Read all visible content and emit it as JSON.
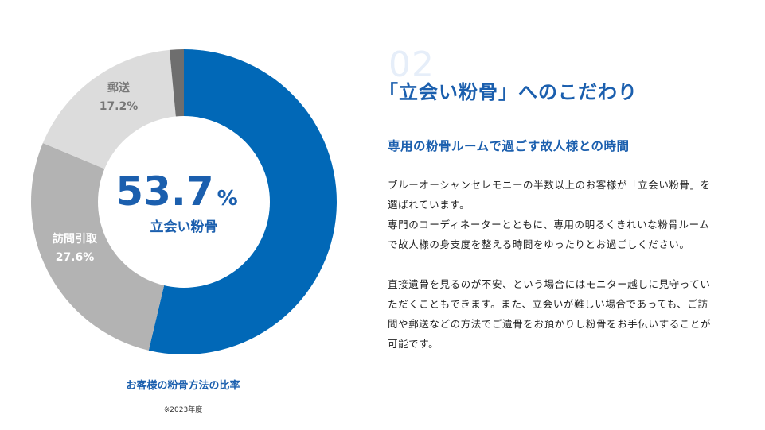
{
  "chart_data": {
    "type": "pie",
    "segments": [
      {
        "label": "立会い粉骨",
        "value": 53.7,
        "color": "#0168b7"
      },
      {
        "label": "訪問引取",
        "value": 27.6,
        "color": "#b3b3b3",
        "value_text": "27.6%"
      },
      {
        "label": "郵送",
        "value": 17.2,
        "color": "#dcdcdc",
        "value_text": "17.2%"
      },
      {
        "label": "",
        "value": 1.5,
        "color": "#6e6e6e"
      }
    ],
    "center": {
      "value": "53.7",
      "unit": "%",
      "label": "立会い粉骨"
    }
  },
  "caption": "お客様の粉骨方法の比率",
  "note": "※2023年度",
  "section": {
    "number": "02",
    "heading": "「立会い粉骨」へのこだわり",
    "subheading": "専用の粉骨ルームで過ごす故人様との時間",
    "paragraph1": [
      "ブルーオーシャンセレモニーの半数以上のお客様が「立会い粉骨」を",
      "選ばれています。",
      "専門のコーディネーターとともに、専用の明るくきれいな粉骨ルーム",
      "で故人様の身支度を整える時間をゆったりとお過ごしください。"
    ],
    "paragraph2": [
      "直接遺骨を見るのが不安、という場合にはモニター越しに見守ってい",
      "ただくこともできます。また、立会いが難しい場合であっても、ご訪",
      "問や郵送などの方法でご遺骨をお預かりし粉骨をお手伝いすることが",
      "可能です。"
    ]
  }
}
